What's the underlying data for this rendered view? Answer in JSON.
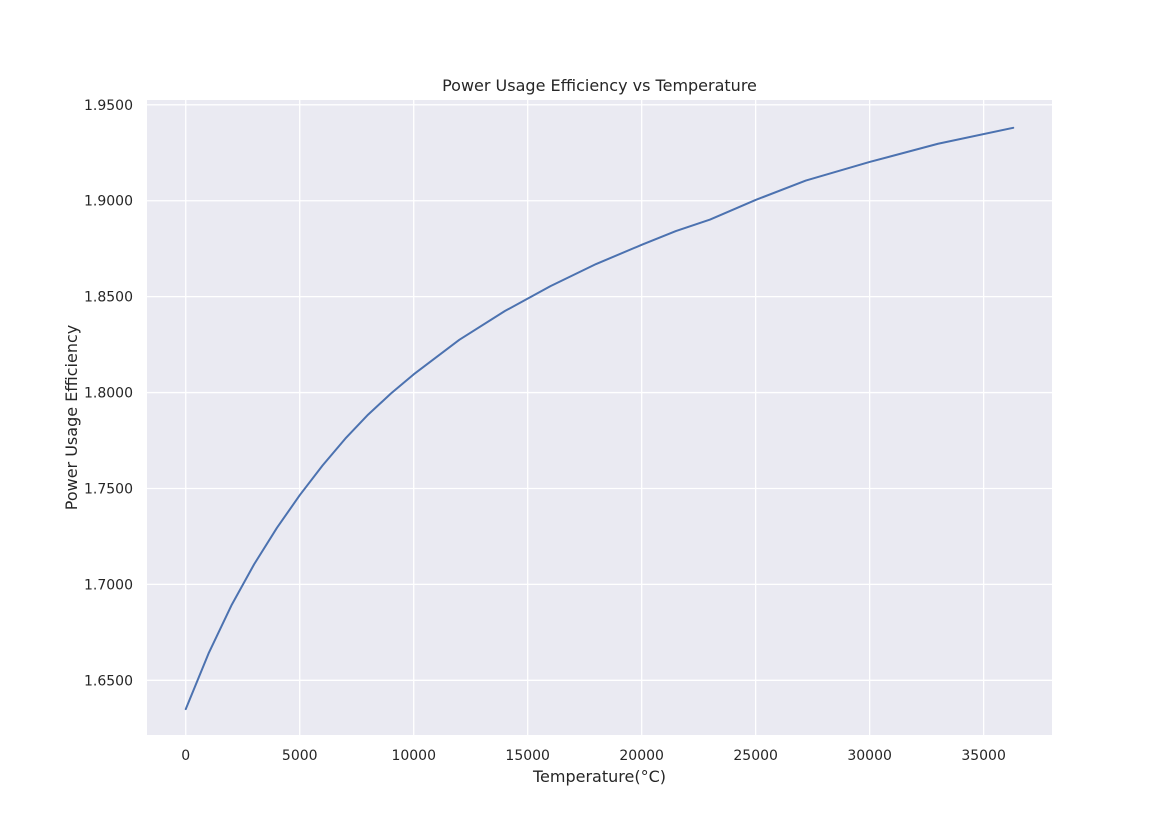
{
  "chart_data": {
    "type": "line",
    "title": "Power Usage Efficiency vs Temperature",
    "xlabel": "Temperature(°C)",
    "ylabel": "Power Usage Efficiency",
    "xlim": [
      -1700,
      38000
    ],
    "ylim": [
      1.6215,
      1.9525
    ],
    "xticks": [
      0,
      5000,
      10000,
      15000,
      20000,
      25000,
      30000,
      35000
    ],
    "xtick_labels": [
      "0",
      "5000",
      "10000",
      "15000",
      "20000",
      "25000",
      "30000",
      "35000"
    ],
    "yticks": [
      1.65,
      1.7,
      1.75,
      1.8,
      1.85,
      1.9,
      1.95
    ],
    "ytick_labels": [
      "1.6500",
      "1.7000",
      "1.7500",
      "1.8000",
      "1.8500",
      "1.9000",
      "1.9500"
    ],
    "grid": true,
    "background": "#eaeaf2",
    "grid_color": "#ffffff",
    "series": [
      {
        "color": "#4c72b0",
        "x": [
          0,
          1000,
          2000,
          3000,
          4000,
          5000,
          6000,
          7000,
          8000,
          9000,
          10000,
          12000,
          14000,
          16000,
          18000,
          20000,
          21500,
          23000,
          25000,
          27200,
          30000,
          33000,
          36300
        ],
        "y": [
          1.635,
          1.664,
          1.689,
          1.7105,
          1.7295,
          1.7465,
          1.762,
          1.776,
          1.7885,
          1.7995,
          1.8095,
          1.8275,
          1.8425,
          1.8555,
          1.867,
          1.877,
          1.8842,
          1.8902,
          1.9004,
          1.9105,
          1.9202,
          1.9297,
          1.938
        ]
      }
    ]
  }
}
